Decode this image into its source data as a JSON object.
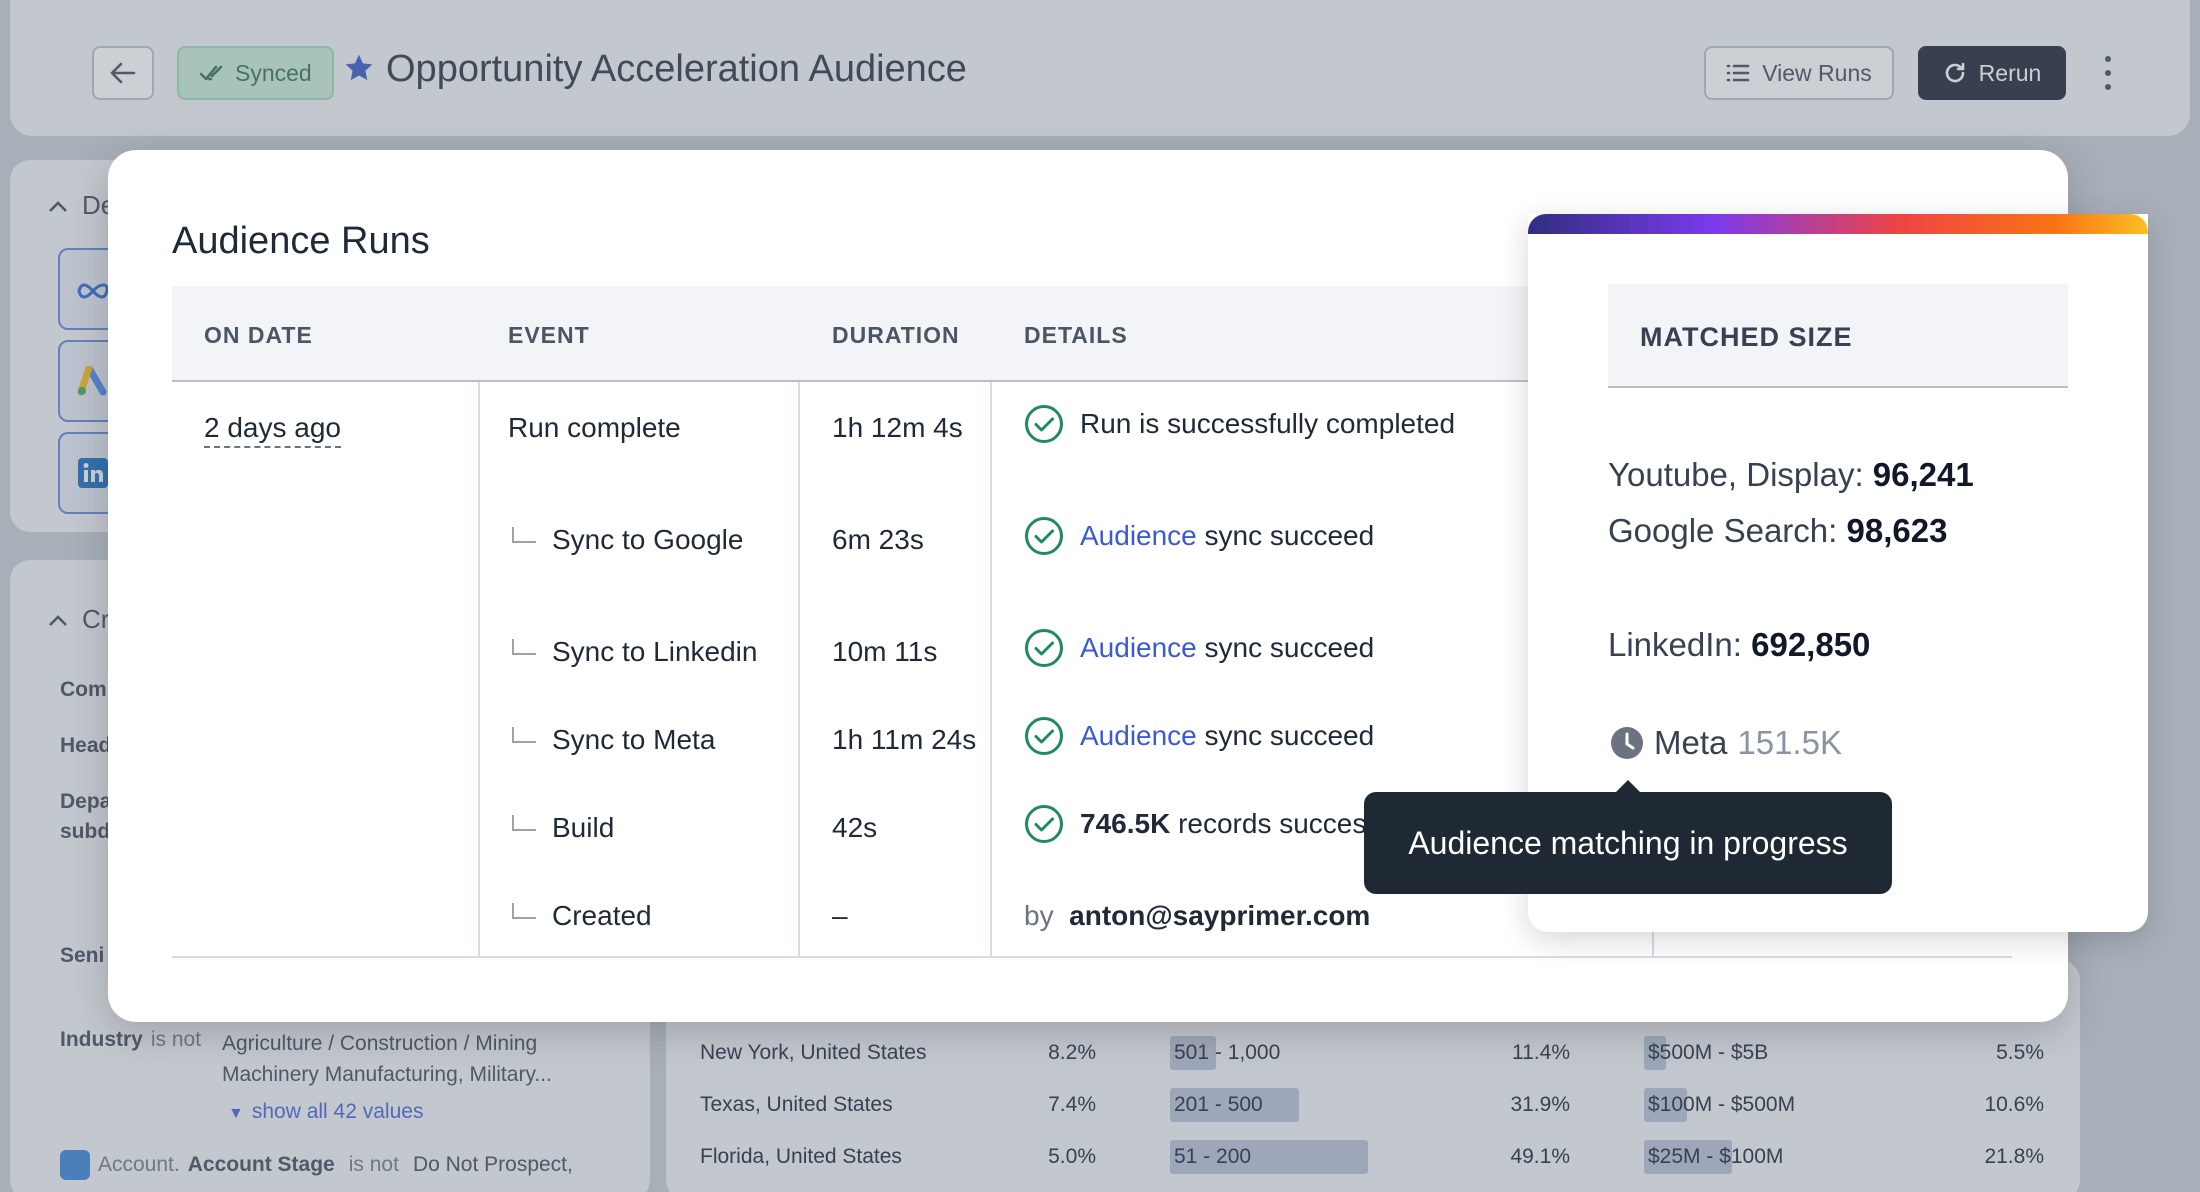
{
  "header": {
    "synced_label": "Synced",
    "title": "Opportunity Acceleration Audience",
    "view_runs_label": "View Runs",
    "rerun_label": "Rerun"
  },
  "background": {
    "section_destinations": "De",
    "section_criteria": "Cr",
    "criteria_labels": [
      "Com",
      "Head",
      "Depa",
      "subd",
      "Seni"
    ],
    "industry": {
      "label": "Industry",
      "operator": "is not",
      "values_line1": "Agriculture / Construction / Mining",
      "values_line2": "Machinery Manufacturing, Military...",
      "show_all": "show all 42 values"
    },
    "account_stage": {
      "category": "Account.",
      "label": "Account Stage",
      "operator": "is not",
      "value": "Do Not Prospect,"
    },
    "locations": [
      {
        "name": "New York, United States",
        "pct": "8.2%",
        "fill": 0
      },
      {
        "name": "Texas, United States",
        "pct": "7.4%",
        "fill": 0
      },
      {
        "name": "Florida, United States",
        "pct": "5.0%",
        "fill": 0
      }
    ],
    "employees": [
      {
        "name": "501 - 1,000",
        "pct": "11.4%",
        "fill": 0.114
      },
      {
        "name": "201 - 500",
        "pct": "31.9%",
        "fill": 0.319
      },
      {
        "name": "51 - 200",
        "pct": "49.1%",
        "fill": 0.491
      }
    ],
    "revenue": [
      {
        "name": "$500M - $5B",
        "pct": "5.5%",
        "fill": 0.055
      },
      {
        "name": "$100M - $500M",
        "pct": "10.6%",
        "fill": 0.106
      },
      {
        "name": "$25M - $100M",
        "pct": "21.8%",
        "fill": 0.218
      }
    ]
  },
  "modal": {
    "title": "Audience Runs",
    "columns": [
      "ON DATE",
      "EVENT",
      "DURATION",
      "DETAILS"
    ],
    "date": "2 days ago",
    "rows": [
      {
        "event": "Run complete",
        "duration": "1h 12m 4s",
        "detail_text": "Run is successfully completed"
      },
      {
        "event": "Sync to Google",
        "duration": "6m 23s",
        "detail_link": "Audience",
        "detail_text": "sync succeed"
      },
      {
        "event": "Sync to Linkedin",
        "duration": "10m 11s",
        "detail_link": "Audience",
        "detail_text": "sync succeed"
      },
      {
        "event": "Sync to Meta",
        "duration": "1h 11m 24s",
        "detail_link": "Audience",
        "detail_text": "sync succeed"
      },
      {
        "event": "Build",
        "duration": "42s",
        "detail_bold": "746.5K",
        "detail_text": "records succes"
      },
      {
        "event": "Created",
        "duration": "–",
        "detail_by": "by",
        "detail_email": "anton@sayprimer.com"
      }
    ]
  },
  "matched": {
    "header": "MATCHED SIZE",
    "youtube_label": "Youtube, Display:",
    "youtube_value": "96,241",
    "google_label": "Google Search:",
    "google_value": "98,623",
    "linkedin_label": "LinkedIn:",
    "linkedin_value": "692,850",
    "meta_label": "Meta",
    "meta_value": "151.5K"
  },
  "tooltip": {
    "text": "Audience matching in progress"
  },
  "colors": {
    "accent": "#3b5bd6",
    "success": "#1f8a5c",
    "dark_button": "#111827"
  }
}
